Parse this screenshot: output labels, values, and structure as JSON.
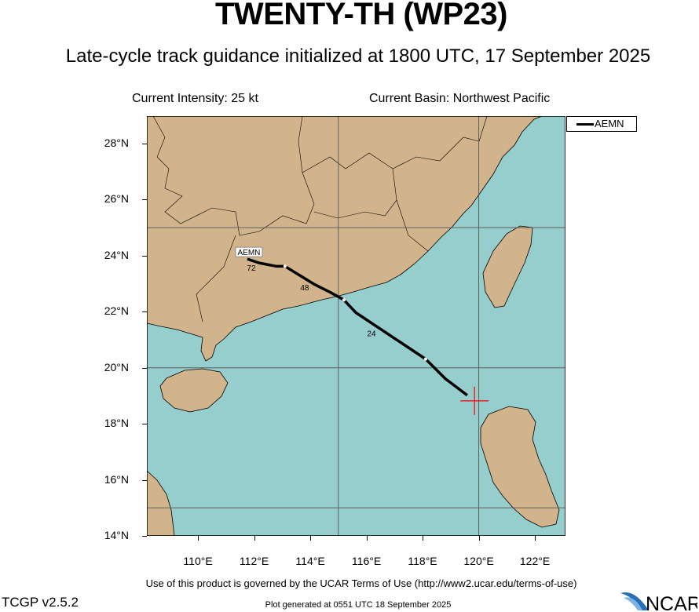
{
  "header": {
    "title": "TWENTY-TH (WP23)",
    "subtitle": "Late-cycle track guidance initialized at 1800 UTC, 17 September 2025"
  },
  "info": {
    "intensity": "Current Intensity: 25 kt",
    "basin": "Current Basin: Northwest Pacific"
  },
  "map": {
    "lon_range": [
      108.18,
      123.09
    ],
    "lat_range": [
      14.0,
      28.98
    ],
    "colors": {
      "land": "#d2b48c",
      "ocean": "#96cdcd",
      "grid": "#606060",
      "track": "#000000",
      "current_position": "#ff0000"
    },
    "lat_labels": [
      "28°N",
      "26°N",
      "24°N",
      "22°N",
      "20°N",
      "18°N",
      "16°N",
      "14°N"
    ],
    "lon_labels": [
      "110°E",
      "112°E",
      "114°E",
      "116°E",
      "118°E",
      "120°E",
      "122°E"
    ],
    "grid_lons": [
      115,
      120
    ],
    "grid_lats": [
      15,
      20,
      25
    ],
    "current_position": {
      "lon": 119.85,
      "lat": 18.82
    },
    "tracks": [
      {
        "model": "AEMN",
        "points": [
          [
            119.59,
            19.02
          ],
          [
            118.81,
            19.61
          ],
          [
            118.39,
            20.03
          ],
          [
            118.11,
            20.31
          ],
          [
            115.62,
            21.97
          ],
          [
            115.2,
            22.42
          ],
          [
            114.7,
            22.7
          ],
          [
            114.14,
            22.98
          ],
          [
            113.1,
            23.62
          ],
          [
            112.8,
            23.62
          ],
          [
            112.18,
            23.74
          ],
          [
            111.76,
            23.88
          ]
        ],
        "dots": [
          [
            118.11,
            20.31
          ],
          [
            115.2,
            22.42
          ],
          [
            113.1,
            23.62
          ]
        ],
        "hour_labels": [
          {
            "text": "24",
            "lon": 116.18,
            "lat": 21.24
          },
          {
            "text": "48",
            "lon": 113.8,
            "lat": 22.87
          },
          {
            "text": "72",
            "lon": 111.9,
            "lat": 23.57
          }
        ],
        "end_label": "AEMN"
      }
    ]
  },
  "legend": {
    "entries": [
      "AEMN"
    ]
  },
  "footer": {
    "terms": "Use of this product is governed by the UCAR Terms of Use (http://www2.ucar.edu/terms-of-use)",
    "version": "TCGP v2.5.2",
    "generated": "Plot generated at 0551 UTC   18 September 2025",
    "logo": "NCAR"
  }
}
